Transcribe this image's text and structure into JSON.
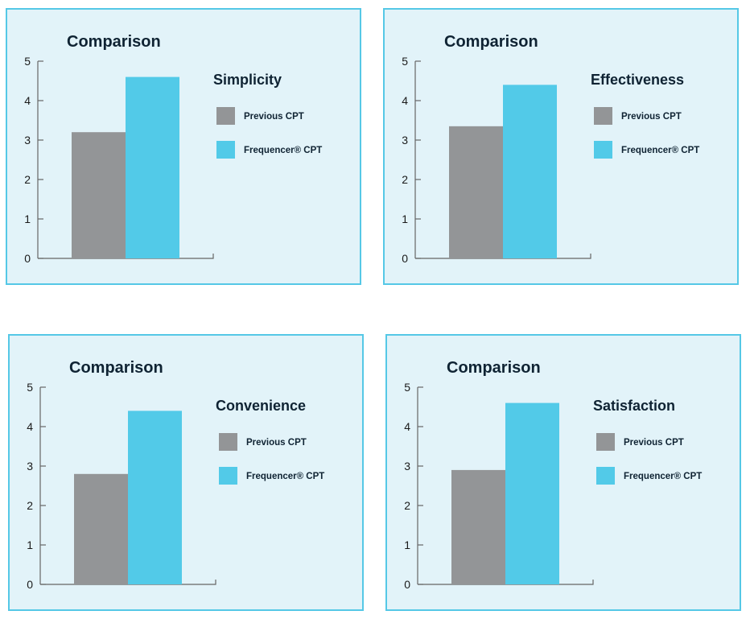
{
  "colors": {
    "panel_bg": "#e2f3f9",
    "panel_border": "#55c8e6",
    "previous": "#939597",
    "frequencer": "#52cae8"
  },
  "legend": {
    "previous_label": "Previous CPT",
    "frequencer_label": "Frequencer® CPT"
  },
  "chart_data": [
    {
      "type": "bar",
      "title": "Comparison",
      "category": "Simplicity",
      "series": [
        {
          "name": "Previous CPT",
          "value": 3.2
        },
        {
          "name": "Frequencer® CPT",
          "value": 4.6
        }
      ],
      "yticks": [
        0,
        1,
        2,
        3,
        4,
        5
      ],
      "ylim": [
        0,
        5
      ],
      "grid": false,
      "legend_position": "right"
    },
    {
      "type": "bar",
      "title": "Comparison",
      "category": "Effectiveness",
      "series": [
        {
          "name": "Previous CPT",
          "value": 3.35
        },
        {
          "name": "Frequencer® CPT",
          "value": 4.4
        }
      ],
      "yticks": [
        0,
        1,
        2,
        3,
        4,
        5
      ],
      "ylim": [
        0,
        5
      ],
      "grid": false,
      "legend_position": "right"
    },
    {
      "type": "bar",
      "title": "Comparison",
      "category": "Convenience",
      "series": [
        {
          "name": "Previous CPT",
          "value": 2.8
        },
        {
          "name": "Frequencer® CPT",
          "value": 4.4
        }
      ],
      "yticks": [
        0,
        1,
        2,
        3,
        4,
        5
      ],
      "ylim": [
        0,
        5
      ],
      "grid": false,
      "legend_position": "right"
    },
    {
      "type": "bar",
      "title": "Comparison",
      "category": "Satisfaction",
      "series": [
        {
          "name": "Previous CPT",
          "value": 2.9
        },
        {
          "name": "Frequencer® CPT",
          "value": 4.6
        }
      ],
      "yticks": [
        0,
        1,
        2,
        3,
        4,
        5
      ],
      "ylim": [
        0,
        5
      ],
      "grid": false,
      "legend_position": "right"
    }
  ]
}
